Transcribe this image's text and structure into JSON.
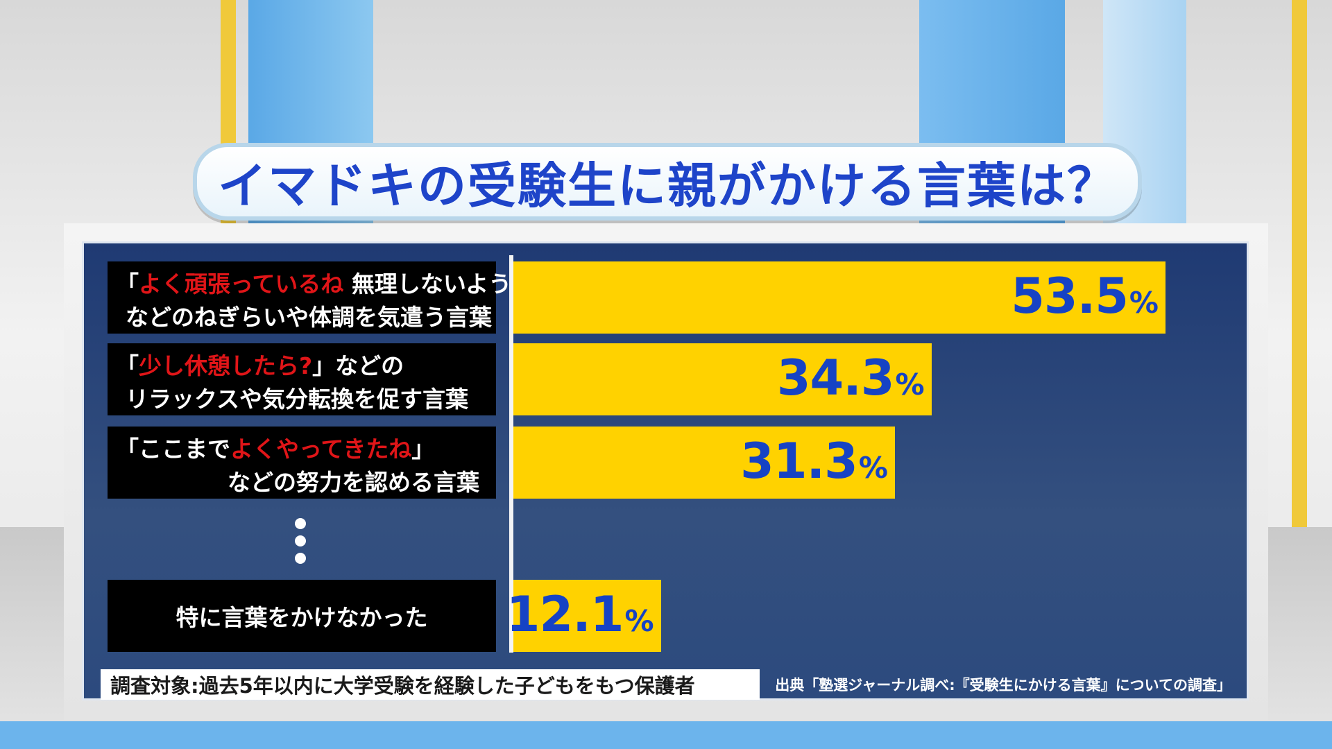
{
  "title": "イマドキの受験生に親がかける言葉は？",
  "chart_data": {
    "type": "bar",
    "orientation": "horizontal",
    "title": "イマドキの受験生に親がかける言葉は？",
    "categories": [
      "「よく頑張っているね 無理しないようにね」などのねぎらいや体調を気遣う言葉",
      "「少し休憩したら?」などのリラックスや気分転換を促す言葉",
      "「ここまでよくやってきたね」などの努力を認める言葉",
      "特に言葉をかけなかった"
    ],
    "values": [
      53.5,
      34.3,
      31.3,
      12.1
    ],
    "value_labels": [
      "53.5",
      "34.3",
      "31.3",
      "12.1"
    ],
    "unit": "%",
    "xlim": [
      0,
      100
    ],
    "bar_color": "#ffd200",
    "value_color": "#1643c4",
    "highlight_color": "#e01518"
  },
  "labels": [
    {
      "line1_pre": "「",
      "line1_red": "よく頑張っているね",
      "line1_post": " 無理しないようにね」",
      "line2": "などのねぎらいや体調を気遣う言葉"
    },
    {
      "line1_pre": "「",
      "line1_red": "少し休憩したら?",
      "line1_post": "」などの",
      "line2": "リラックスや気分転換を促す言葉"
    },
    {
      "line1_pre": "「ここまで",
      "line1_red": "よくやってきたね",
      "line1_post": "」",
      "line2": "などの努力を認める言葉"
    },
    {
      "line1": "特に言葉をかけなかった"
    }
  ],
  "footer": {
    "survey_target": "調査対象:過去5年以内に大学受験を経験した子どもをもつ保護者",
    "source": "出典「塾選ジャーナル調べ:『受験生にかける言葉』についての調査」"
  }
}
